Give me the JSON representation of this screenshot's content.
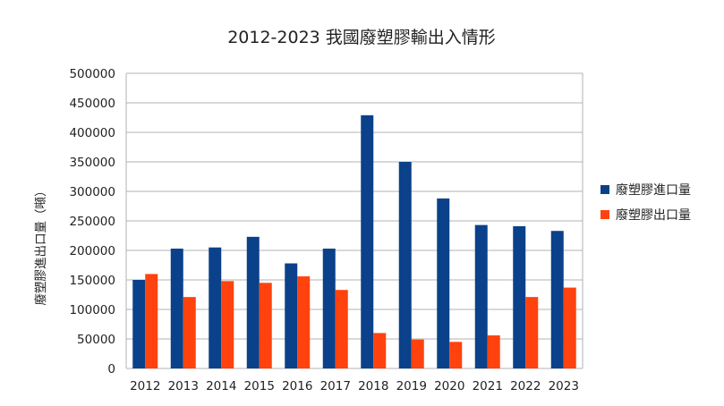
{
  "chart_data": {
    "type": "bar",
    "title": "2012-2023 我國廢塑膠輸出入情形",
    "xlabel": "",
    "ylabel": "廢塑膠進出口量（噸）",
    "categories": [
      "2012",
      "2013",
      "2014",
      "2015",
      "2016",
      "2017",
      "2018",
      "2019",
      "2020",
      "2021",
      "2022",
      "2023"
    ],
    "series": [
      {
        "name": "廢塑膠進口量",
        "color": "#0a418a",
        "values": [
          150000,
          203000,
          205000,
          223000,
          178000,
          203000,
          429000,
          350000,
          288000,
          243000,
          241000,
          233000
        ]
      },
      {
        "name": "廢塑膠出口量",
        "color": "#ff420e",
        "values": [
          160000,
          121000,
          148000,
          145000,
          156000,
          133000,
          60000,
          49000,
          45000,
          56000,
          121000,
          137000
        ]
      }
    ],
    "ylim": [
      0,
      500000
    ],
    "yticks": [
      0,
      50000,
      100000,
      150000,
      200000,
      250000,
      300000,
      350000,
      400000,
      450000,
      500000
    ],
    "grid": true,
    "legend": "right"
  }
}
